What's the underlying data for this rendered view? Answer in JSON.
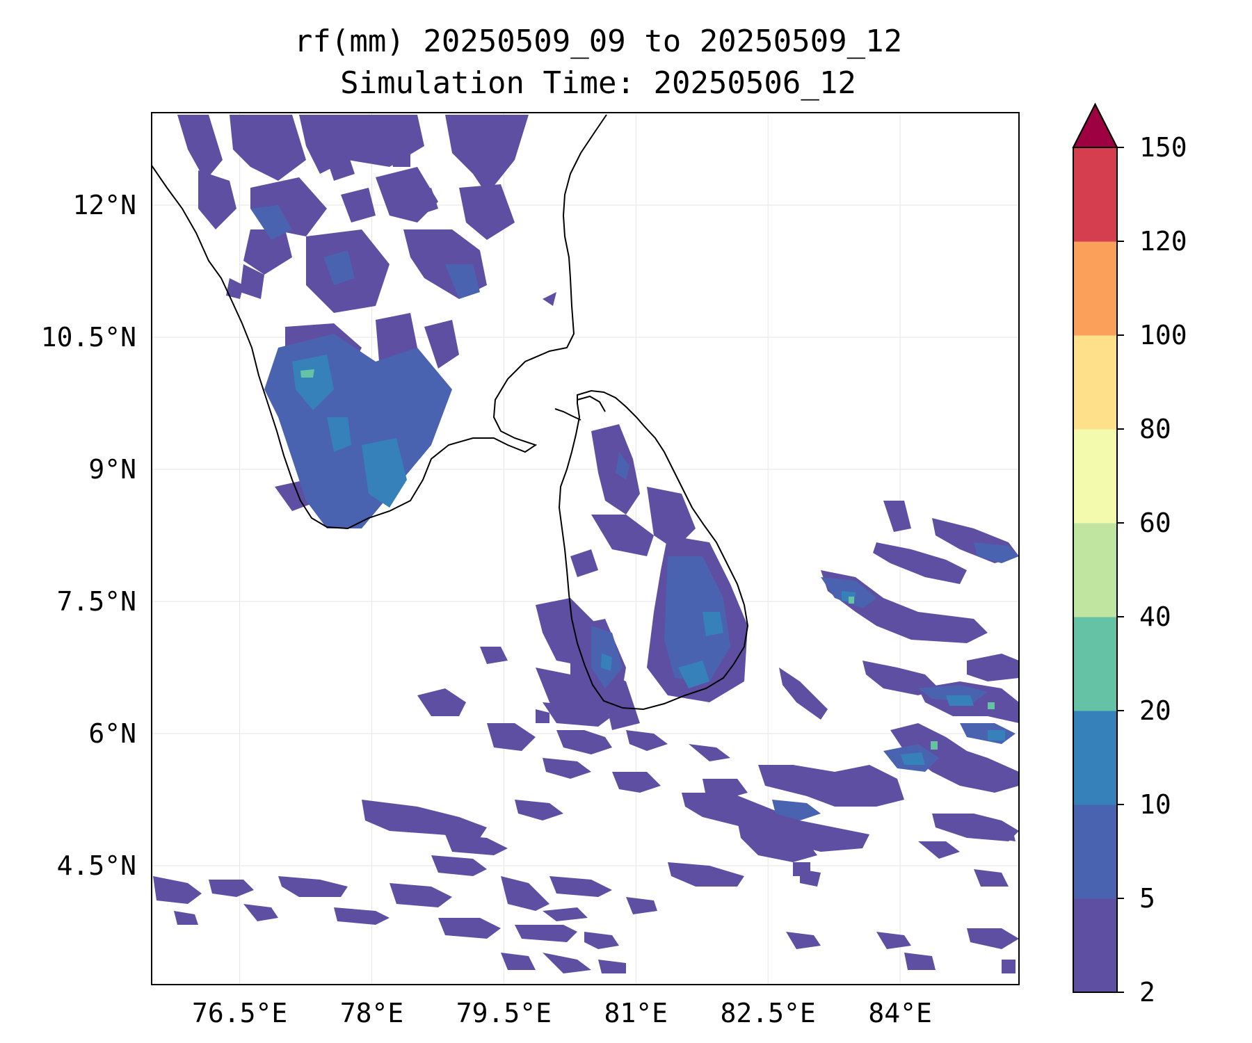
{
  "title": {
    "line1": "rf(mm) 20250509_09 to 20250509_12",
    "line2": "Simulation Time: 20250506_12"
  },
  "map": {
    "extent_lon": [
      75.5,
      85.35
    ],
    "extent_lat": [
      3.15,
      13.05
    ],
    "lon_ticks": [
      {
        "value": 76.5,
        "label": "76.5°E"
      },
      {
        "value": 78,
        "label": "78°E"
      },
      {
        "value": 79.5,
        "label": "79.5°E"
      },
      {
        "value": 81,
        "label": "81°E"
      },
      {
        "value": 82.5,
        "label": "82.5°E"
      },
      {
        "value": 84,
        "label": "84°E"
      }
    ],
    "lat_ticks": [
      {
        "value": 12,
        "label": "12°N"
      },
      {
        "value": 10.5,
        "label": "10.5°N"
      },
      {
        "value": 9,
        "label": "9°N"
      },
      {
        "value": 7.5,
        "label": "7.5°N"
      },
      {
        "value": 6,
        "label": "6°N"
      },
      {
        "value": 4.5,
        "label": "4.5°N"
      }
    ],
    "gridlines": true,
    "coastline_color": "#000000",
    "rain_colors": {
      "light": "#5e4fa2",
      "mid": "#4a63b0",
      "heavy": "#3681ba",
      "peak": "#66c2a5"
    }
  },
  "colorbar": {
    "levels": [
      {
        "value": 2,
        "label": "2"
      },
      {
        "value": 5,
        "label": "5"
      },
      {
        "value": 10,
        "label": "10"
      },
      {
        "value": 20,
        "label": "20"
      },
      {
        "value": 40,
        "label": "40"
      },
      {
        "value": 60,
        "label": "60"
      },
      {
        "value": 80,
        "label": "80"
      },
      {
        "value": 100,
        "label": "100"
      },
      {
        "value": 120,
        "label": "120"
      },
      {
        "value": 150,
        "label": "150"
      }
    ],
    "colors": [
      "#5e4fa2",
      "#4a63b0",
      "#3681ba",
      "#66c2a5",
      "#bfe5a0",
      "#f4faad",
      "#fee08b",
      "#fba05b",
      "#d53e4f"
    ],
    "extend_color": "#9e0142",
    "extend": "max"
  }
}
